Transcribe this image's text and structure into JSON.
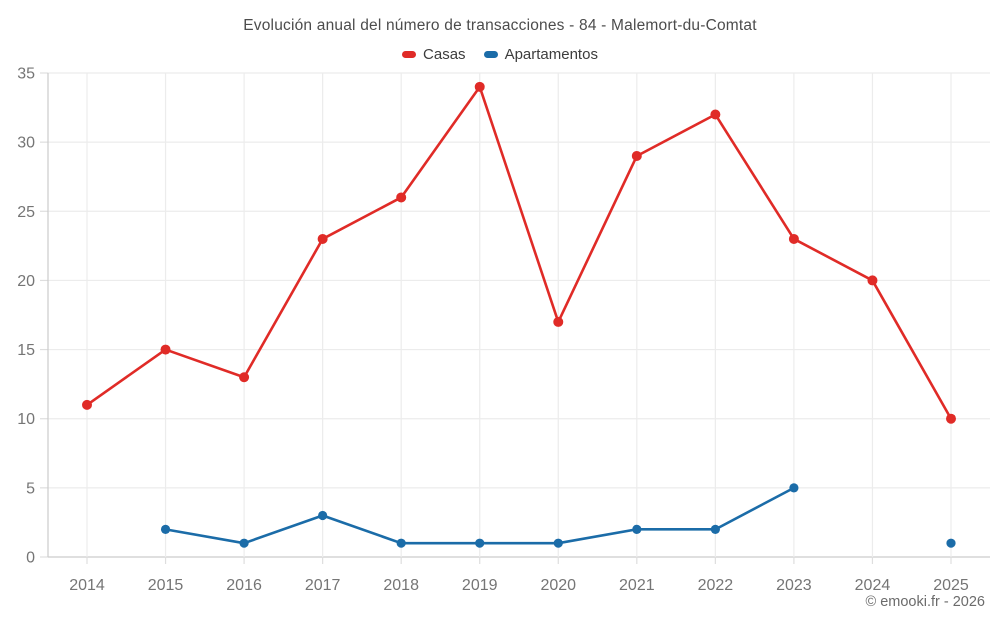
{
  "header": {
    "title": "Evolución anual del número de transacciones - 84 - Malemort-du-Comtat"
  },
  "footer": {
    "copyright": "© emooki.fr - 2026"
  },
  "colors": {
    "casas": "#e02b27",
    "apartamentos": "#1b6ca8",
    "grid": "#ececec",
    "axis": "#cccccc",
    "tick_label": "#757575"
  },
  "chart_data": {
    "type": "line",
    "title": "Evolución anual del número de transacciones - 84 - Malemort-du-Comtat",
    "x": [
      2014,
      2015,
      2016,
      2017,
      2018,
      2019,
      2020,
      2021,
      2022,
      2023,
      2024,
      2025
    ],
    "series": [
      {
        "name": "Casas",
        "color": "#e02b27",
        "values": [
          11,
          15,
          13,
          23,
          26,
          34,
          17,
          29,
          32,
          23,
          20,
          10
        ]
      },
      {
        "name": "Apartamentos",
        "color": "#1b6ca8",
        "values": [
          null,
          2,
          1,
          3,
          1,
          1,
          1,
          2,
          2,
          5,
          null,
          1
        ]
      }
    ],
    "xlabel": "",
    "ylabel": "",
    "ylim": [
      0,
      35
    ],
    "ytick_step": 5,
    "grid": true,
    "legend_position": "top"
  }
}
